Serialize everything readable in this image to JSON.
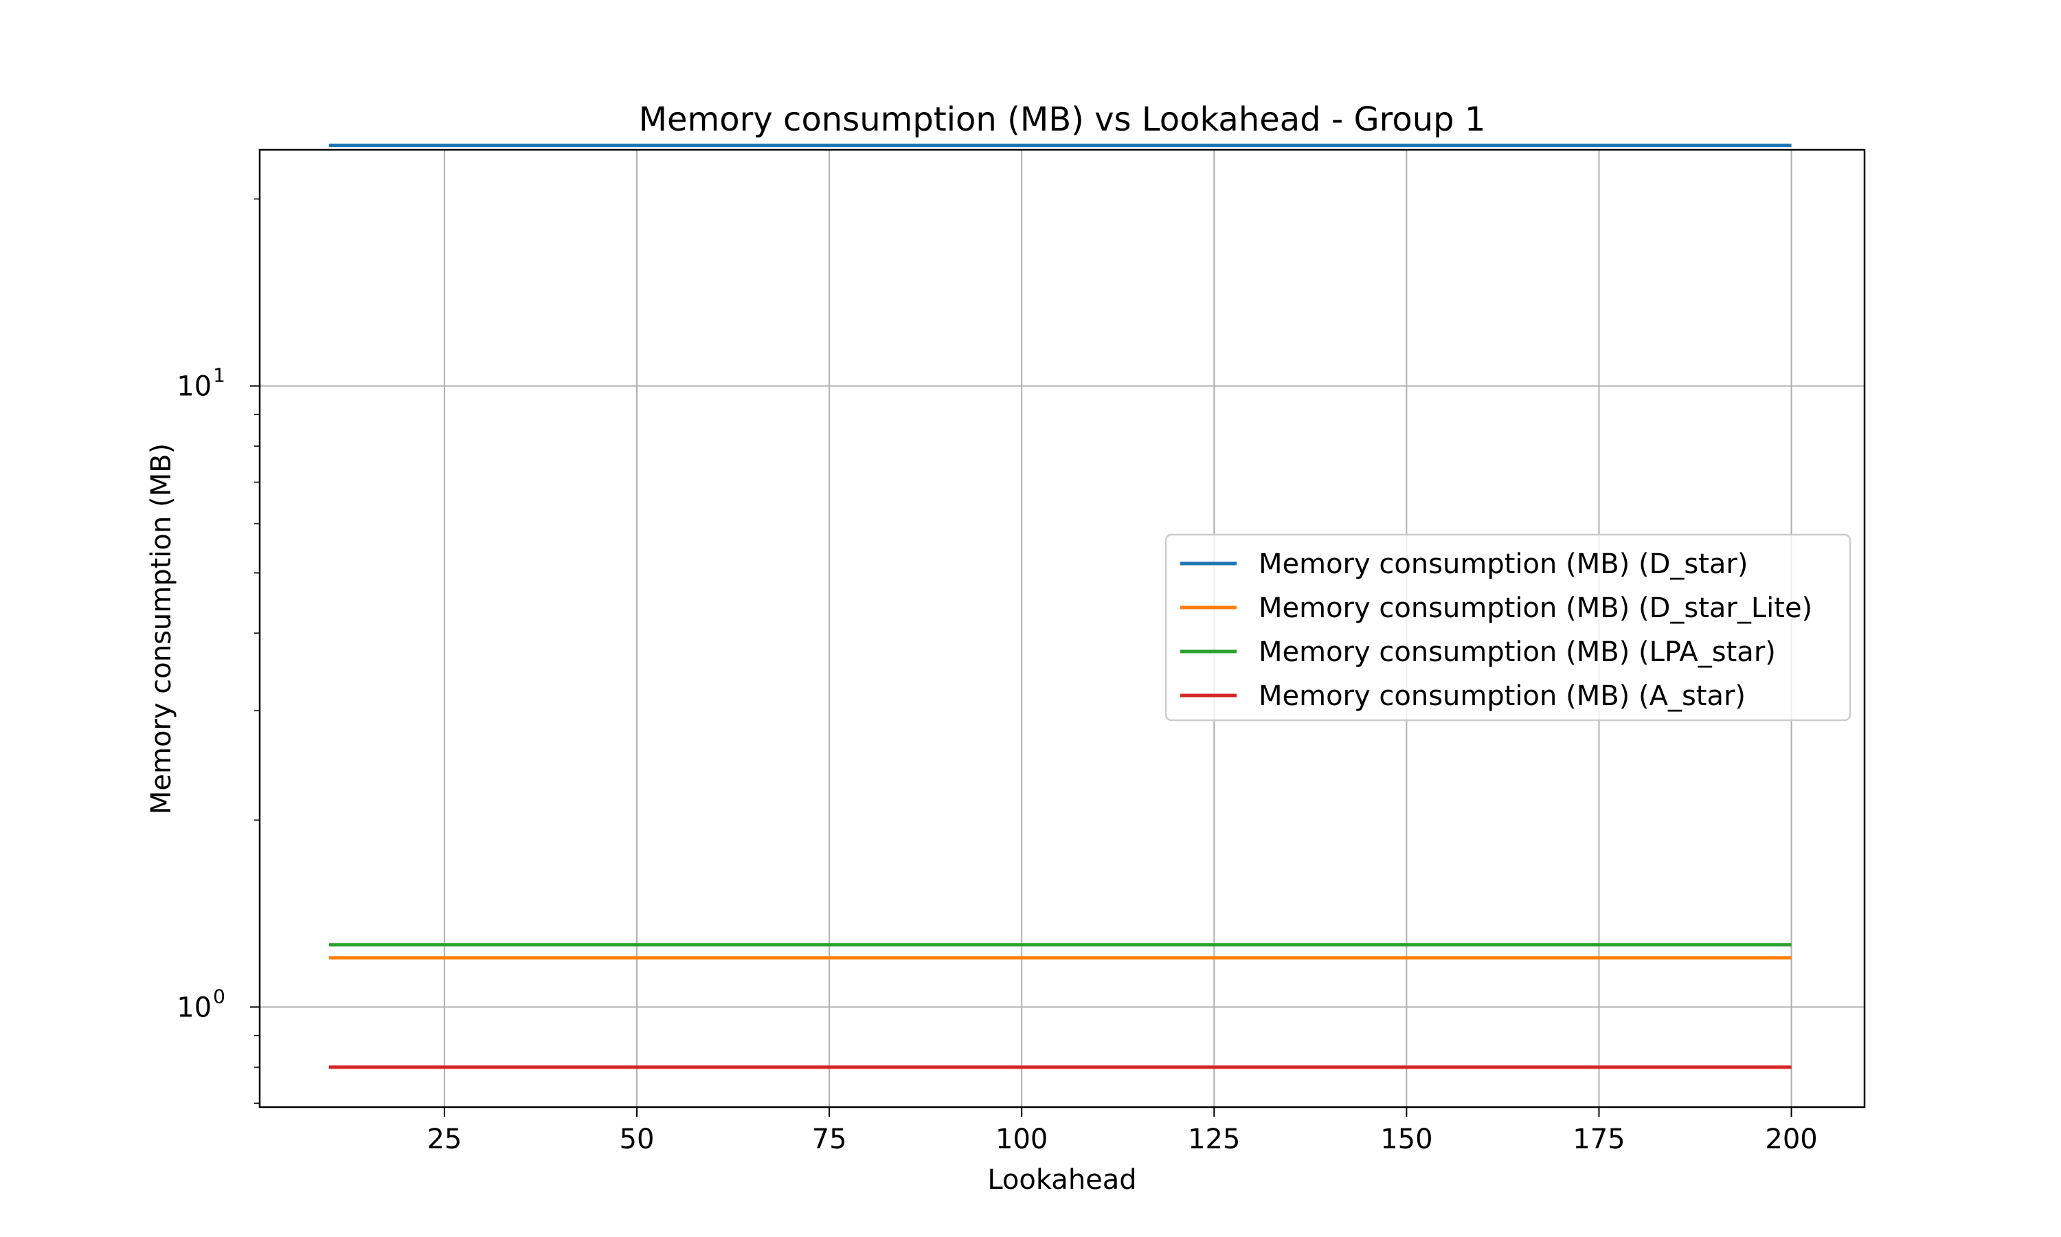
{
  "chart_data": {
    "type": "line",
    "title": "Memory consumption (MB) vs Lookahead - Group 1",
    "xlabel": "Lookahead",
    "ylabel": "Memory consumption (MB)",
    "xscale": "linear",
    "yscale": "log",
    "xlim": [
      1,
      209.5
    ],
    "ylim": [
      0.69,
      24.0
    ],
    "xticks": [
      25,
      50,
      75,
      100,
      125,
      150,
      175,
      200
    ],
    "xtick_labels": [
      "25",
      "50",
      "75",
      "100",
      "125",
      "150",
      "175",
      "200"
    ],
    "yticks": [
      1,
      10
    ],
    "ytick_labels": [
      {
        "base": "10",
        "exp": "0"
      },
      {
        "base": "10",
        "exp": "1"
      }
    ],
    "grid": true,
    "legend_position": "center-right",
    "series": [
      {
        "name": "Memory consumption (MB) (D_star)",
        "color": "#1f77b4",
        "x": [
          10,
          200
        ],
        "y": [
          24.4,
          24.4
        ]
      },
      {
        "name": "Memory consumption (MB) (D_star_Lite)",
        "color": "#ff7f0e",
        "x": [
          10,
          200
        ],
        "y": [
          1.2,
          1.2
        ]
      },
      {
        "name": "Memory consumption (MB) (LPA_star)",
        "color": "#2ca02c",
        "x": [
          10,
          200
        ],
        "y": [
          1.26,
          1.26
        ]
      },
      {
        "name": "Memory consumption (MB) (A_star)",
        "color": "#d62728",
        "x": [
          10,
          200
        ],
        "y": [
          0.8,
          0.8
        ]
      }
    ]
  }
}
